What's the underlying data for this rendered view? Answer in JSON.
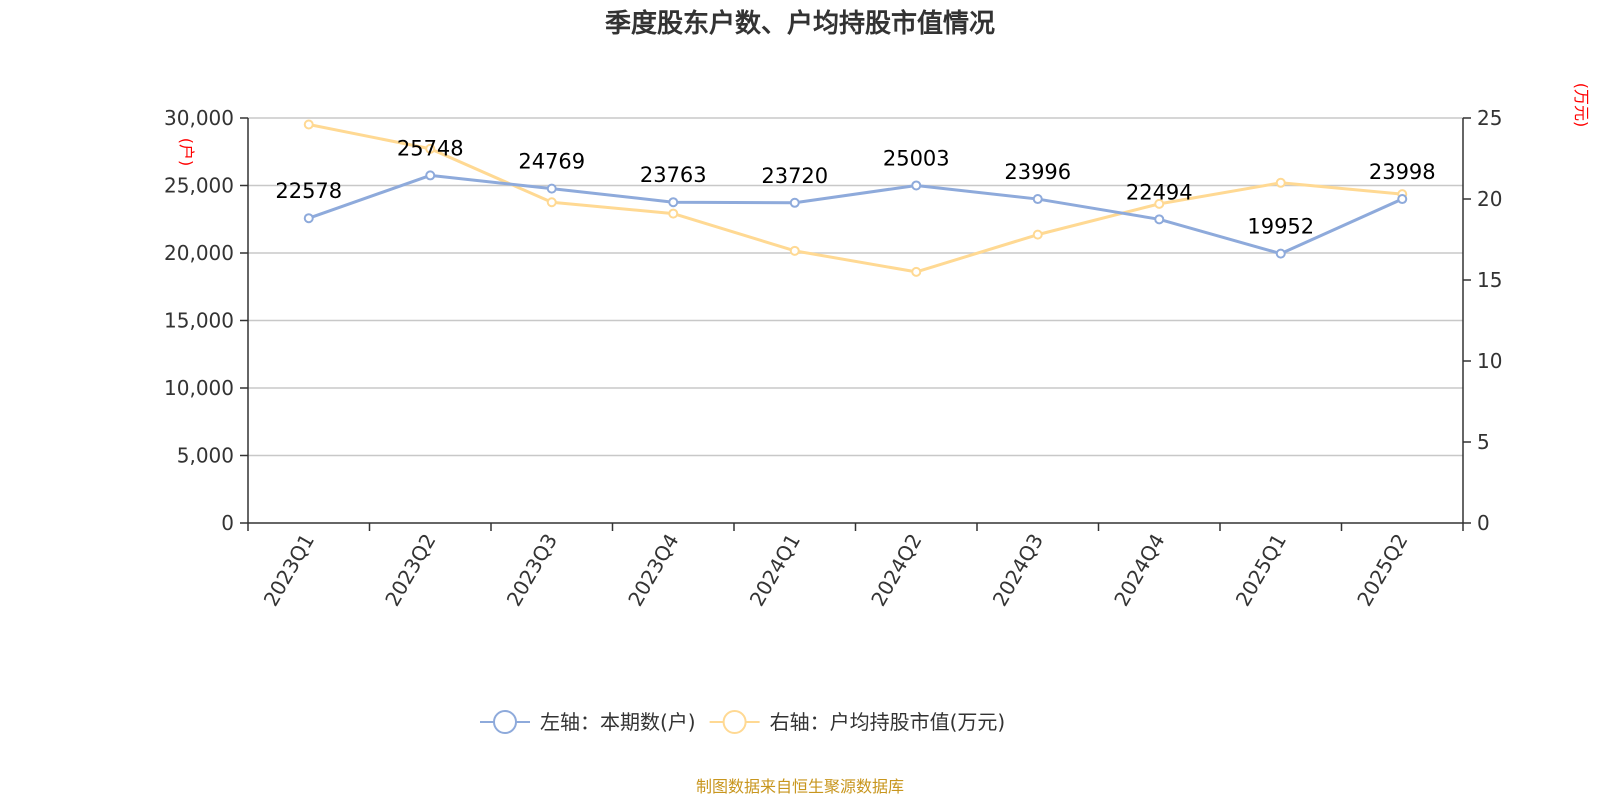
{
  "chart_data": {
    "type": "line",
    "title": "季度股东户数、户均持股市值情况",
    "categories": [
      "2023Q1",
      "2023Q2",
      "2023Q3",
      "2023Q4",
      "2024Q1",
      "2024Q2",
      "2024Q3",
      "2024Q4",
      "2025Q1",
      "2025Q2"
    ],
    "y_left": {
      "unit": "(户)",
      "range": [
        0,
        30000
      ],
      "ticks": [
        "0",
        "5,000",
        "10,000",
        "15,000",
        "20,000",
        "25,000",
        "30,000"
      ]
    },
    "y_right": {
      "unit": "(万元)",
      "range": [
        0,
        25
      ],
      "ticks": [
        "0",
        "5",
        "10",
        "15",
        "20",
        "25"
      ]
    },
    "grid": true,
    "legend_position": "bottom",
    "series": [
      {
        "name": "左轴：本期数(户)",
        "axis": "left",
        "color": "#8eaadb",
        "values": [
          22578,
          25748,
          24769,
          23763,
          23720,
          25003,
          23996,
          22494,
          19952,
          23998
        ],
        "labels": [
          "22578",
          "25748",
          "24769",
          "23763",
          "23720",
          "25003",
          "23996",
          "22494",
          "19952",
          "23998"
        ]
      },
      {
        "name": "右轴：户均持股市值(万元)",
        "axis": "right",
        "color": "#ffd993",
        "values": [
          24.6,
          23.1,
          19.8,
          19.1,
          16.8,
          15.5,
          17.8,
          19.7,
          21.0,
          20.3
        ]
      }
    ],
    "source": "制图数据来自恒生聚源数据库"
  }
}
